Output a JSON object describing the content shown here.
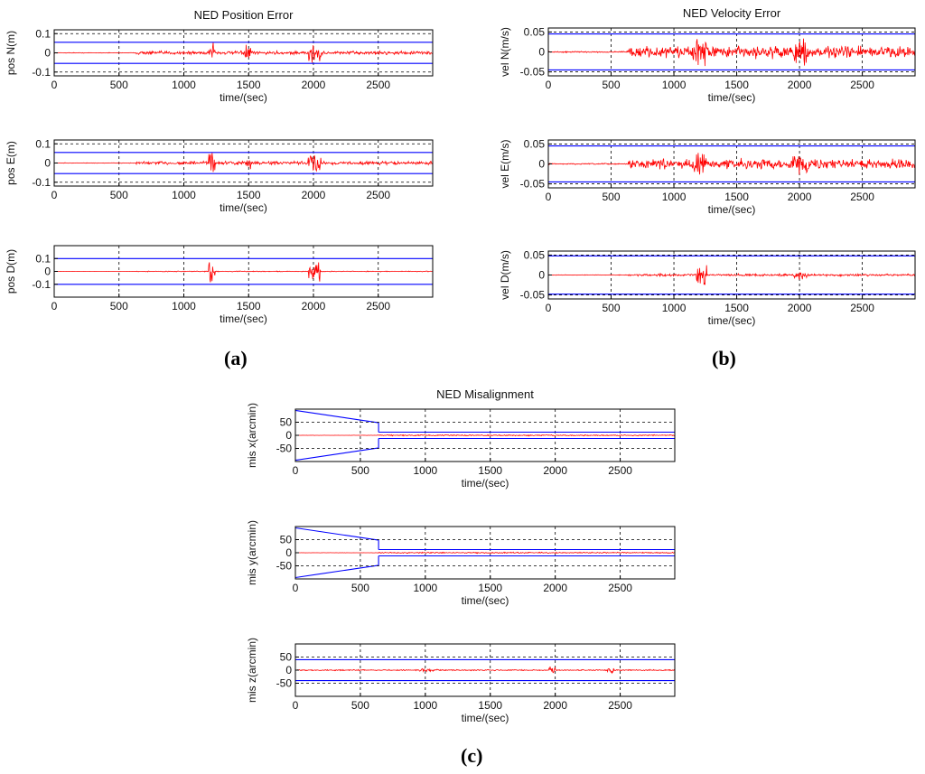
{
  "figure": {
    "panel_labels": [
      "(a)",
      "(b)",
      "(c)"
    ],
    "colors": {
      "error": "#ff0000",
      "bound": "#0000ff",
      "axis": "#000000",
      "grid": "#000000"
    }
  },
  "chart_data": [
    {
      "group": "a",
      "type": "line",
      "title": "NED Position Error",
      "ylabel": "pos N(m)",
      "xlabel": "time/(sec)",
      "xlim": [
        0,
        2920
      ],
      "ylim": [
        -0.12,
        0.12
      ],
      "xticks": [
        0,
        500,
        1000,
        1500,
        2000,
        2500
      ],
      "yticks": [
        -0.1,
        0,
        0.1
      ],
      "ytick_labels": [
        "-0.1",
        "0",
        "0.1"
      ],
      "dashed_y": [
        0.1,
        -0.1
      ],
      "series": [
        {
          "name": "position error N",
          "color": "#ff0000",
          "kind": "noise",
          "segments": [
            [
              0,
              630,
              0.002
            ],
            [
              630,
              2920,
              0.012
            ]
          ],
          "bursts": [
            [
              1190,
              1240,
              0.09
            ],
            [
              1470,
              1520,
              0.05
            ],
            [
              1960,
              2060,
              0.08
            ]
          ]
        },
        {
          "name": "bound N",
          "color": "#0000ff",
          "kind": "sym",
          "segments": [
            [
              0,
              2920,
              0.055
            ]
          ]
        }
      ]
    },
    {
      "group": "a",
      "type": "line",
      "title": "",
      "ylabel": "pos E(m)",
      "xlabel": "time/(sec)",
      "xlim": [
        0,
        2920
      ],
      "ylim": [
        -0.12,
        0.12
      ],
      "xticks": [
        0,
        500,
        1000,
        1500,
        2000,
        2500
      ],
      "yticks": [
        -0.1,
        0,
        0.1
      ],
      "ytick_labels": [
        "-0.1",
        "0",
        "0.1"
      ],
      "dashed_y": [
        0.1,
        -0.1
      ],
      "series": [
        {
          "name": "position error E",
          "color": "#ff0000",
          "kind": "noise",
          "segments": [
            [
              0,
              630,
              0.002
            ],
            [
              630,
              2920,
              0.012
            ]
          ],
          "bursts": [
            [
              1190,
              1240,
              0.09
            ],
            [
              1470,
              1520,
              0.05
            ],
            [
              1960,
              2060,
              0.08
            ]
          ]
        },
        {
          "name": "bound E",
          "color": "#0000ff",
          "kind": "sym",
          "segments": [
            [
              0,
              2920,
              0.055
            ]
          ]
        }
      ]
    },
    {
      "group": "a",
      "type": "line",
      "title": "",
      "ylabel": "pos D(m)",
      "xlabel": "time/(sec)",
      "xlim": [
        0,
        2920
      ],
      "ylim": [
        -0.2,
        0.2
      ],
      "xticks": [
        0,
        500,
        1000,
        1500,
        2000,
        2500
      ],
      "yticks": [
        -0.1,
        0,
        0.1
      ],
      "ytick_labels": [
        "-0.1",
        "0",
        "0.1"
      ],
      "dashed_y": [],
      "series": [
        {
          "name": "position error D",
          "color": "#ff0000",
          "kind": "noise",
          "segments": [
            [
              0,
              630,
              0.001
            ],
            [
              630,
              2920,
              0.004
            ]
          ],
          "bursts": [
            [
              1190,
              1240,
              0.15
            ],
            [
              1960,
              2060,
              0.1
            ]
          ]
        },
        {
          "name": "bound D",
          "color": "#0000ff",
          "kind": "sym",
          "segments": [
            [
              0,
              2920,
              0.1
            ]
          ]
        }
      ]
    },
    {
      "group": "b",
      "type": "line",
      "title": "NED Velocity Error",
      "ylabel": "vel N(m/s)",
      "xlabel": "time/(sec)",
      "xlim": [
        0,
        2920
      ],
      "ylim": [
        -0.06,
        0.06
      ],
      "xticks": [
        0,
        500,
        1000,
        1500,
        2000,
        2500
      ],
      "yticks": [
        -0.05,
        0,
        0.05
      ],
      "ytick_labels": [
        "-0.05",
        "0",
        "0.05"
      ],
      "dashed_y": [
        0.05,
        -0.05
      ],
      "series": [
        {
          "name": "velocity error N",
          "color": "#ff0000",
          "kind": "noise",
          "segments": [
            [
              0,
              630,
              0.002
            ],
            [
              630,
              2920,
              0.02
            ]
          ],
          "bursts": [
            [
              1150,
              1260,
              0.045
            ],
            [
              1940,
              2070,
              0.045
            ]
          ]
        },
        {
          "name": "bound N",
          "color": "#0000ff",
          "kind": "sym",
          "segments": [
            [
              0,
              2920,
              0.045
            ]
          ]
        }
      ]
    },
    {
      "group": "b",
      "type": "line",
      "title": "",
      "ylabel": "vel E(m/s)",
      "xlabel": "time/(sec)",
      "xlim": [
        0,
        2920
      ],
      "ylim": [
        -0.06,
        0.06
      ],
      "xticks": [
        0,
        500,
        1000,
        1500,
        2000,
        2500
      ],
      "yticks": [
        -0.05,
        0,
        0.05
      ],
      "ytick_labels": [
        "-0.05",
        "0",
        "0.05"
      ],
      "dashed_y": [
        0.05,
        -0.05
      ],
      "series": [
        {
          "name": "velocity error E",
          "color": "#ff0000",
          "kind": "noise",
          "segments": [
            [
              0,
              630,
              0.002
            ],
            [
              630,
              2920,
              0.016
            ]
          ],
          "bursts": [
            [
              1150,
              1260,
              0.04
            ],
            [
              1940,
              2070,
              0.04
            ]
          ]
        },
        {
          "name": "bound E",
          "color": "#0000ff",
          "kind": "sym",
          "segments": [
            [
              0,
              2920,
              0.045
            ]
          ]
        }
      ]
    },
    {
      "group": "b",
      "type": "line",
      "title": "",
      "ylabel": "vel D(m/s)",
      "xlabel": "time/(sec)",
      "xlim": [
        0,
        2920
      ],
      "ylim": [
        -0.06,
        0.06
      ],
      "xticks": [
        0,
        500,
        1000,
        1500,
        2000,
        2500
      ],
      "yticks": [
        -0.05,
        0,
        0.05
      ],
      "ytick_labels": [
        "-0.05",
        "0",
        "0.05"
      ],
      "dashed_y": [
        0.05,
        -0.05
      ],
      "series": [
        {
          "name": "velocity error D",
          "color": "#ff0000",
          "kind": "noise",
          "segments": [
            [
              0,
              630,
              0.001
            ],
            [
              630,
              2920,
              0.004
            ]
          ],
          "bursts": [
            [
              1180,
              1260,
              0.03
            ],
            [
              1960,
              2060,
              0.015
            ]
          ]
        },
        {
          "name": "bound D",
          "color": "#0000ff",
          "kind": "sym",
          "segments": [
            [
              0,
              2920,
              0.048
            ]
          ]
        }
      ]
    },
    {
      "group": "c",
      "type": "line",
      "title": "NED Misalignment",
      "ylabel": "mis x(arcmin)",
      "xlabel": "time/(sec)",
      "xlim": [
        0,
        2920
      ],
      "ylim": [
        -100,
        100
      ],
      "xticks": [
        0,
        500,
        1000,
        1500,
        2000,
        2500
      ],
      "yticks": [
        -50,
        0,
        50
      ],
      "ytick_labels": [
        "-50",
        "0",
        "50"
      ],
      "dashed_y": [
        50,
        -50
      ],
      "series": [
        {
          "name": "misalignment x",
          "color": "#ff0000",
          "kind": "noise",
          "segments": [
            [
              0,
              630,
              0.5
            ],
            [
              630,
              2920,
              3
            ]
          ],
          "bursts": []
        },
        {
          "name": "bound x",
          "color": "#0000ff",
          "kind": "sym",
          "segments": [
            [
              0,
              640,
              95,
              48
            ],
            [
              640,
              2920,
              12
            ]
          ]
        }
      ]
    },
    {
      "group": "c",
      "type": "line",
      "title": "",
      "ylabel": "mis y(arcmin)",
      "xlabel": "time/(sec)",
      "xlim": [
        0,
        2920
      ],
      "ylim": [
        -100,
        100
      ],
      "xticks": [
        0,
        500,
        1000,
        1500,
        2000,
        2500
      ],
      "yticks": [
        -50,
        0,
        50
      ],
      "ytick_labels": [
        "-50",
        "0",
        "50"
      ],
      "dashed_y": [
        50,
        -50
      ],
      "series": [
        {
          "name": "misalignment y",
          "color": "#ff0000",
          "kind": "noise",
          "segments": [
            [
              0,
              630,
              0.5
            ],
            [
              630,
              2920,
              3
            ]
          ],
          "bursts": []
        },
        {
          "name": "bound y",
          "color": "#0000ff",
          "kind": "sym",
          "segments": [
            [
              0,
              640,
              95,
              48
            ],
            [
              640,
              2920,
              12
            ]
          ]
        }
      ]
    },
    {
      "group": "c",
      "type": "line",
      "title": "",
      "ylabel": "mis z(arcmin)",
      "xlabel": "time/(sec)",
      "xlim": [
        0,
        2920
      ],
      "ylim": [
        -100,
        100
      ],
      "xticks": [
        0,
        500,
        1000,
        1500,
        2000,
        2500
      ],
      "yticks": [
        -50,
        0,
        50
      ],
      "ytick_labels": [
        "-50",
        "0",
        "50"
      ],
      "dashed_y": [
        50,
        -50
      ],
      "series": [
        {
          "name": "misalignment z",
          "color": "#ff0000",
          "kind": "noise",
          "segments": [
            [
              0,
              2920,
              3
            ]
          ],
          "bursts": [
            [
              950,
              1100,
              8
            ],
            [
              1950,
              2000,
              30
            ],
            [
              2400,
              2450,
              20
            ]
          ]
        },
        {
          "name": "bound z",
          "color": "#0000ff",
          "kind": "sym",
          "segments": [
            [
              0,
              2920,
              40
            ]
          ]
        }
      ]
    }
  ]
}
